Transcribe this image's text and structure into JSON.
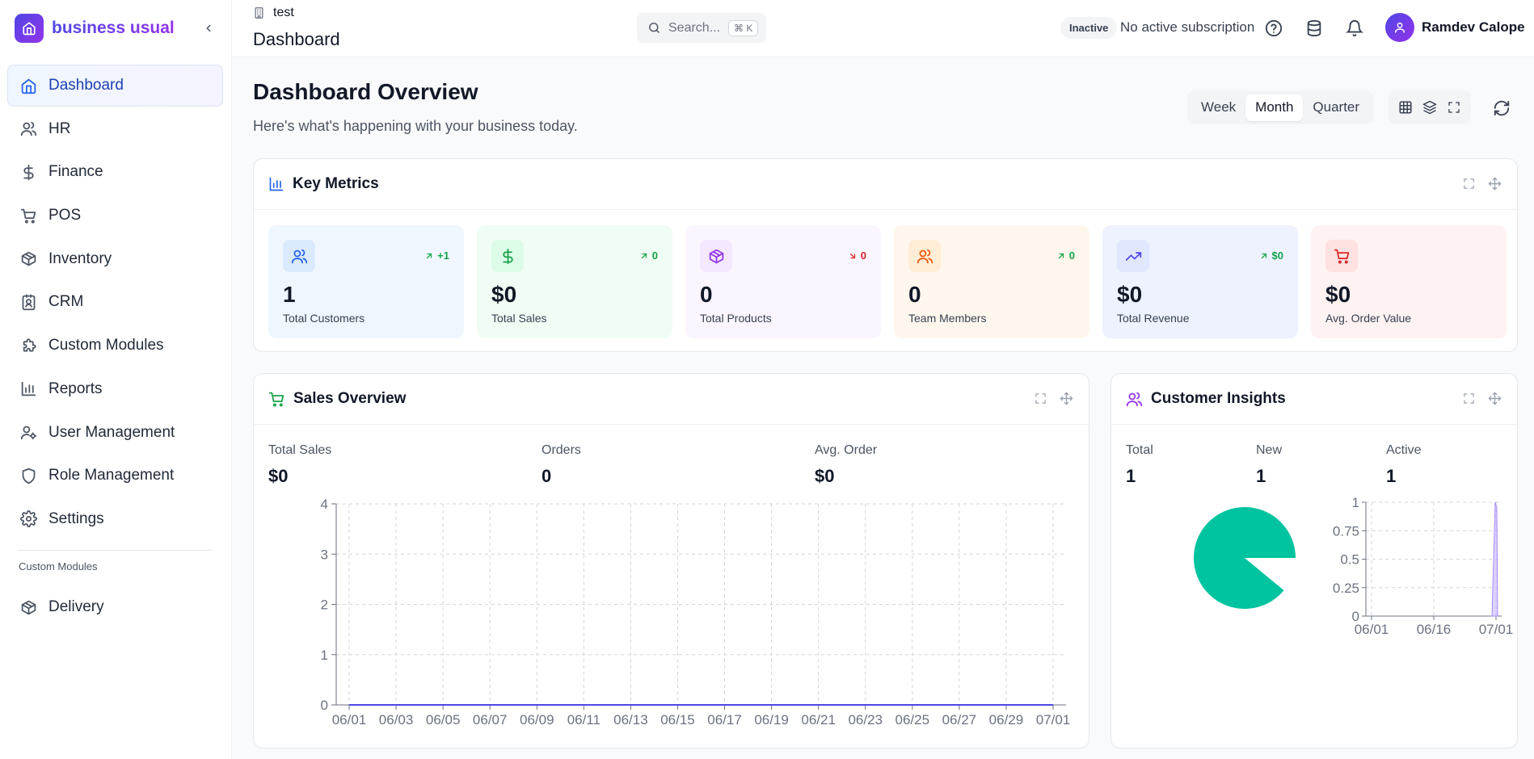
{
  "brand": {
    "name": "business usual"
  },
  "nav": {
    "items": [
      {
        "label": "Dashboard",
        "icon": "home-icon",
        "active": true
      },
      {
        "label": "HR",
        "icon": "users-icon"
      },
      {
        "label": "Finance",
        "icon": "dollar-icon"
      },
      {
        "label": "POS",
        "icon": "cart-icon"
      },
      {
        "label": "Inventory",
        "icon": "package-icon"
      },
      {
        "label": "CRM",
        "icon": "contact-icon"
      },
      {
        "label": "Custom Modules",
        "icon": "puzzle-icon"
      },
      {
        "label": "Reports",
        "icon": "bar-chart-icon"
      },
      {
        "label": "User Management",
        "icon": "user-cog-icon"
      },
      {
        "label": "Role Management",
        "icon": "shield-icon"
      },
      {
        "label": "Settings",
        "icon": "gear-icon"
      }
    ],
    "section_label": "Custom Modules",
    "extra_items": [
      {
        "label": "Delivery",
        "icon": "package-icon"
      }
    ]
  },
  "header": {
    "org": "test",
    "title": "Dashboard",
    "search_placeholder": "Search...",
    "search_shortcut": "⌘ K",
    "status_badge": "Inactive",
    "subscription_text": "No active subscription",
    "user_name": "Ramdev Calope"
  },
  "overview": {
    "title": "Dashboard Overview",
    "subtitle": "Here's what's happening with your business today.",
    "periods": [
      "Week",
      "Month",
      "Quarter"
    ],
    "active_period": "Month"
  },
  "key_metrics": {
    "title": "Key Metrics",
    "cards": [
      {
        "label": "Total Customers",
        "value": "1",
        "trend": "+1",
        "trend_dir": "up",
        "bg": "#eff6ff",
        "icon_bg": "#dbeafe",
        "icon_color": "#2563eb",
        "icon": "users-icon"
      },
      {
        "label": "Total Sales",
        "value": "$0",
        "trend": "0",
        "trend_dir": "up",
        "bg": "#f0fdf4",
        "icon_bg": "#dcfce7",
        "icon_color": "#16a34a",
        "icon": "dollar-icon"
      },
      {
        "label": "Total Products",
        "value": "0",
        "trend": "0",
        "trend_dir": "down",
        "bg": "#faf5ff",
        "icon_bg": "#f3e8ff",
        "icon_color": "#9333ea",
        "icon": "package-icon"
      },
      {
        "label": "Team Members",
        "value": "0",
        "trend": "0",
        "trend_dir": "up",
        "bg": "#fff7ed",
        "icon_bg": "#ffedd5",
        "icon_color": "#ea580c",
        "icon": "users-icon"
      },
      {
        "label": "Total Revenue",
        "value": "$0",
        "trend": "$0",
        "trend_dir": "up",
        "bg": "#eef2ff",
        "icon_bg": "#e0e7ff",
        "icon_color": "#4f46e5",
        "icon": "trending-up-icon"
      },
      {
        "label": "Avg. Order Value",
        "value": "$0",
        "trend": "",
        "trend_dir": "none",
        "bg": "#fef2f2",
        "icon_bg": "#fee2e2",
        "icon_color": "#dc2626",
        "icon": "cart-icon"
      }
    ]
  },
  "sales_overview": {
    "title": "Sales Overview",
    "stats": [
      {
        "label": "Total Sales",
        "value": "$0"
      },
      {
        "label": "Orders",
        "value": "0"
      },
      {
        "label": "Avg. Order",
        "value": "$0"
      }
    ]
  },
  "customer_insights": {
    "title": "Customer Insights",
    "stats": [
      {
        "label": "Total",
        "value": "1"
      },
      {
        "label": "New",
        "value": "1"
      },
      {
        "label": "Active",
        "value": "1"
      }
    ]
  },
  "colors": {
    "accent": "#4f46e5",
    "pie": "#00c49f",
    "grid": "#d1d5db",
    "trend_up": "#16a34a",
    "trend_down": "#dc2626"
  },
  "chart_data": [
    {
      "type": "line",
      "x": [
        "06/01",
        "06/03",
        "06/05",
        "06/07",
        "06/09",
        "06/11",
        "06/13",
        "06/15",
        "06/17",
        "06/19",
        "06/21",
        "06/23",
        "06/25",
        "06/27",
        "06/29",
        "07/01"
      ],
      "series": [
        {
          "values": [
            0,
            0,
            0,
            0,
            0,
            0,
            0,
            0,
            0,
            0,
            0,
            0,
            0,
            0,
            0,
            0
          ]
        }
      ],
      "yticks": [
        0,
        1,
        2,
        3,
        4
      ],
      "ylim": [
        0,
        4
      ],
      "grid": true
    },
    {
      "type": "pie",
      "slices": [
        {
          "value": 0.89
        },
        {
          "value": 0.11
        }
      ]
    },
    {
      "type": "area",
      "x": [
        "06/01",
        "06/16",
        "07/01"
      ],
      "yticks": [
        "0",
        "0.25",
        "0.5",
        "0.75",
        "1"
      ],
      "ylim": [
        0,
        1
      ],
      "spike_at": "07/01",
      "grid": true
    }
  ]
}
